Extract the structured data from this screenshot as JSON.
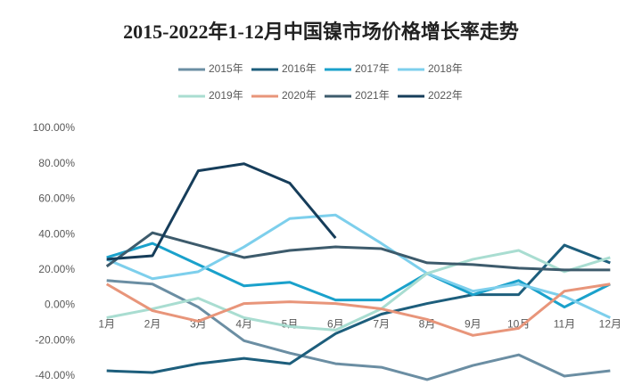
{
  "chart_data": {
    "type": "line",
    "title": "2015-2022年1-12月中国镍市场价格增长率走势",
    "categories": [
      "1月",
      "2月",
      "3月",
      "4月",
      "5月",
      "6月",
      "7月",
      "8月",
      "9月",
      "10月",
      "11月",
      "12月"
    ],
    "series": [
      {
        "name": "2015年",
        "color": "#6b8ea3",
        "values": [
          14,
          12,
          -1,
          -20,
          -27,
          -33,
          -35,
          -42,
          -34,
          -28,
          -40,
          -37
        ]
      },
      {
        "name": "2016年",
        "color": "#1d5e7c",
        "values": [
          -37,
          -38,
          -33,
          -30,
          -33,
          -16,
          -5,
          1,
          6,
          6,
          34,
          24
        ]
      },
      {
        "name": "2017年",
        "color": "#1aa1cb",
        "values": [
          27,
          35,
          23,
          11,
          13,
          3,
          3,
          18,
          6,
          14,
          -1,
          12
        ]
      },
      {
        "name": "2018年",
        "color": "#7dcfec",
        "values": [
          26,
          15,
          19,
          33,
          49,
          51,
          35,
          18,
          8,
          12,
          5,
          -7
        ]
      },
      {
        "name": "2019年",
        "color": "#a9ddd1",
        "values": [
          -7,
          -2,
          4,
          -7,
          -12,
          -14,
          -2,
          18,
          26,
          31,
          19,
          27
        ]
      },
      {
        "name": "2020年",
        "color": "#e8957a",
        "values": [
          12,
          -3,
          -9,
          1,
          2,
          1,
          -2,
          -8,
          -17,
          -13,
          8,
          12
        ]
      },
      {
        "name": "2021年",
        "color": "#3d5b6c",
        "values": [
          22,
          41,
          34,
          27,
          31,
          33,
          32,
          24,
          23,
          21,
          20,
          20
        ]
      },
      {
        "name": "2022年",
        "color": "#163d5a",
        "values": [
          26,
          28,
          76,
          80,
          69,
          38,
          null,
          null,
          null,
          null,
          null,
          null
        ]
      }
    ],
    "ylim": [
      -40,
      100
    ],
    "yticks": [
      {
        "value": -40,
        "label": "-40.00%"
      },
      {
        "value": -20,
        "label": "-20.00%"
      },
      {
        "value": 0,
        "label": "0.00%"
      },
      {
        "value": 20,
        "label": "20.00%"
      },
      {
        "value": 40,
        "label": "40.00%"
      },
      {
        "value": 60,
        "label": "60.00%"
      },
      {
        "value": 80,
        "label": "80.00%"
      },
      {
        "value": 100,
        "label": "100.00%"
      }
    ],
    "grid": false
  }
}
